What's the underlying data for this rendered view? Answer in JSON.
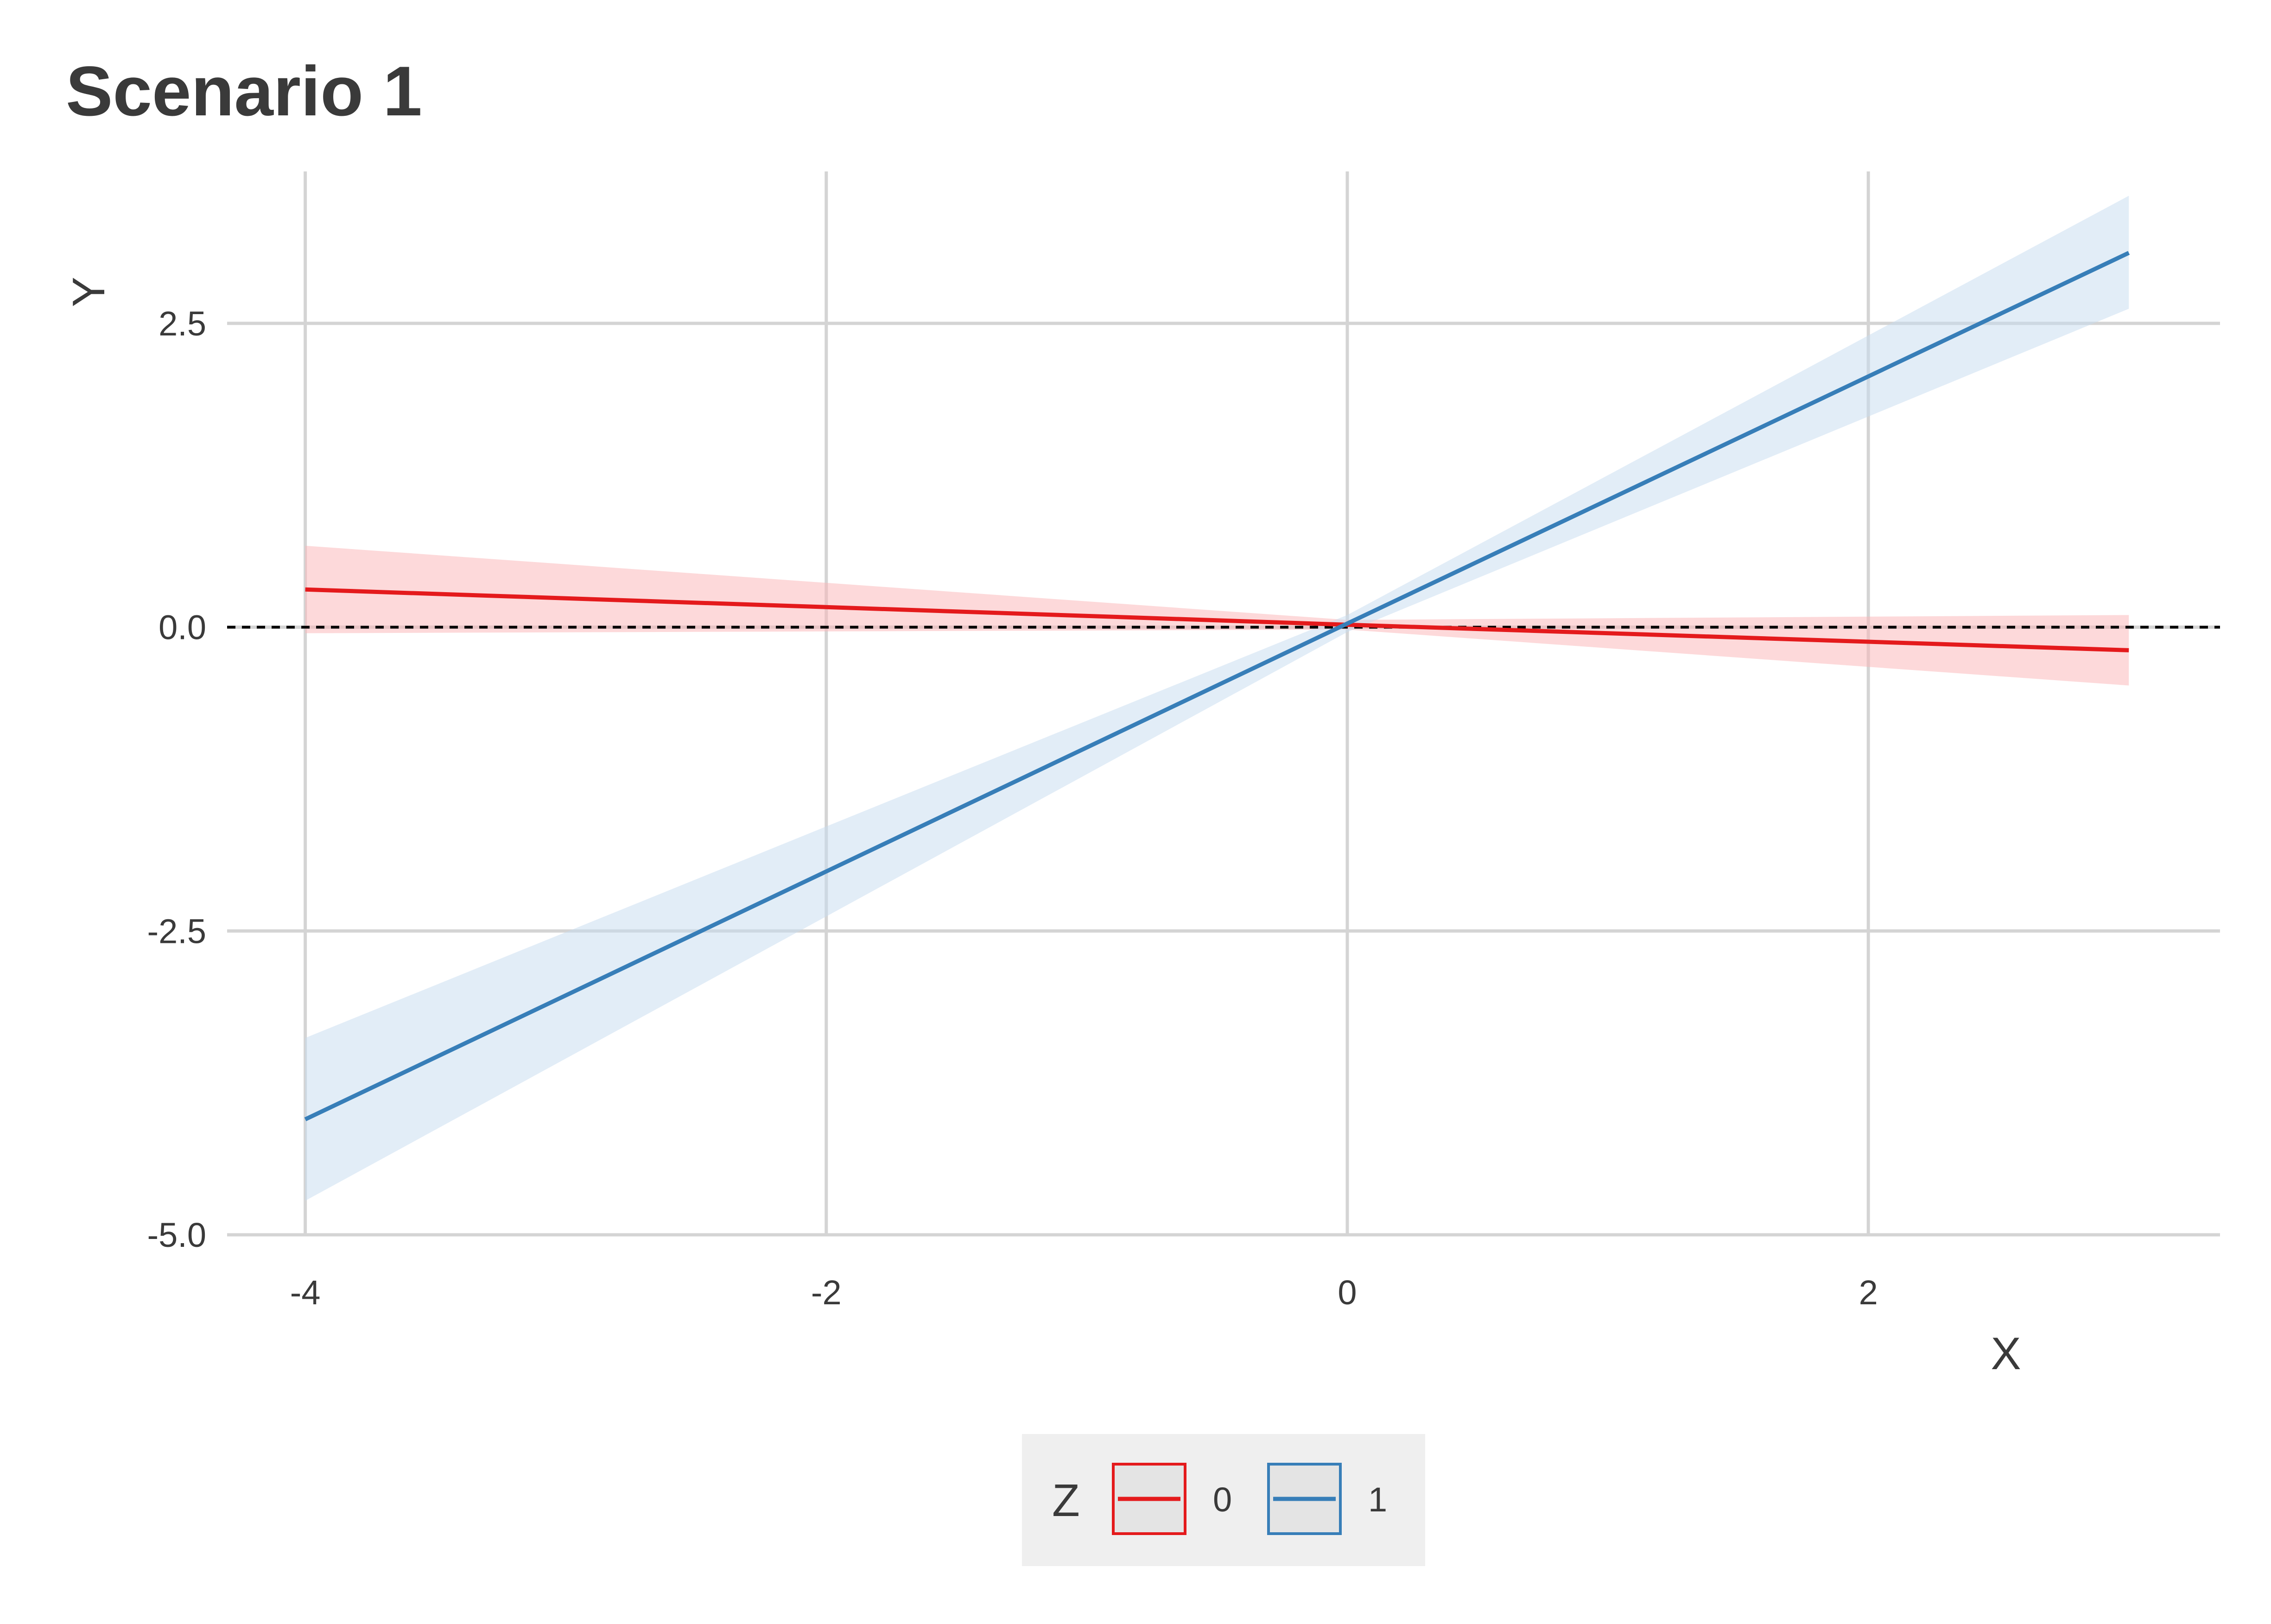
{
  "chart_data": {
    "type": "line",
    "title": "Scenario 1",
    "xlabel": "X",
    "ylabel": "Y",
    "xlim": [
      -4.3,
      3.35
    ],
    "ylim": [
      -5.0,
      3.75
    ],
    "x_ticks": [
      -4,
      -2,
      0,
      2
    ],
    "x_tick_labels": [
      "-4",
      "-2",
      "0",
      "2"
    ],
    "y_ticks": [
      -5.0,
      -2.5,
      0.0,
      2.5
    ],
    "y_tick_labels": [
      "-5.0",
      "-2.5",
      "0.0",
      "2.5"
    ],
    "grid": true,
    "reference_line": {
      "y": 0,
      "style": "dashed",
      "color": "#000000"
    },
    "legend": {
      "title": "Z",
      "position": "bottom"
    },
    "series": [
      {
        "name": "0",
        "color": "#e41a1c",
        "band_color": "#fbb4b5",
        "x": [
          -4,
          0,
          3
        ],
        "y": [
          0.31,
          0.02,
          -0.19
        ],
        "lower": [
          -0.05,
          -0.02,
          -0.48
        ],
        "upper": [
          0.67,
          0.06,
          0.1
        ]
      },
      {
        "name": "1",
        "color": "#377eb8",
        "band_color": "#c6dbef",
        "x": [
          -4,
          0,
          3
        ],
        "y": [
          -4.05,
          0.03,
          3.08
        ],
        "lower": [
          -4.72,
          -0.04,
          2.62
        ],
        "upper": [
          -3.38,
          0.1,
          3.55
        ]
      }
    ]
  }
}
